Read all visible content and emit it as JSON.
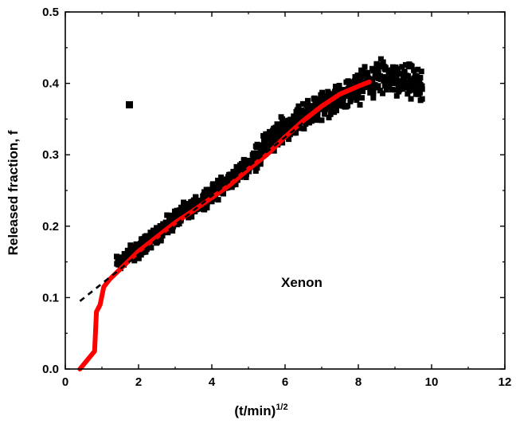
{
  "chart_data": {
    "type": "scatter",
    "xlabel": "(t/min)",
    "xlabel_superscript": "1/2",
    "ylabel": "Released fraction, f",
    "annotation": "Xenon",
    "xlim": [
      0,
      12
    ],
    "ylim": [
      0.0,
      0.5
    ],
    "x_ticks": [
      "0",
      "2",
      "4",
      "6",
      "8",
      "10",
      "12"
    ],
    "y_ticks": [
      "0.0",
      "0.1",
      "0.2",
      "0.3",
      "0.4",
      "0.5"
    ],
    "grid": false,
    "legend": "none",
    "colors": {
      "points": "#000000",
      "fit": "#ff0000",
      "dashed": "#000000"
    },
    "series": [
      {
        "kind": "points",
        "marker": "square",
        "color": "#000000",
        "outlier": [
          1.75,
          0.37
        ],
        "trend": [
          [
            1.4,
            0.148
          ],
          [
            2.0,
            0.168
          ],
          [
            3.0,
            0.21
          ],
          [
            4.0,
            0.245
          ],
          [
            5.0,
            0.285
          ],
          [
            5.5,
            0.315
          ],
          [
            6.0,
            0.338
          ],
          [
            6.5,
            0.355
          ],
          [
            7.0,
            0.368
          ],
          [
            7.5,
            0.38
          ],
          [
            8.0,
            0.395
          ],
          [
            8.5,
            0.408
          ],
          [
            9.0,
            0.405
          ],
          [
            9.5,
            0.4
          ],
          [
            9.75,
            0.395
          ]
        ]
      },
      {
        "kind": "line",
        "style": "solid",
        "color": "#ff0000",
        "points": [
          [
            0.4,
            0.0
          ],
          [
            0.8,
            0.025
          ],
          [
            0.85,
            0.08
          ],
          [
            0.95,
            0.09
          ],
          [
            1.05,
            0.115
          ],
          [
            1.2,
            0.125
          ],
          [
            1.5,
            0.14
          ],
          [
            2.0,
            0.165
          ],
          [
            2.5,
            0.185
          ],
          [
            3.0,
            0.205
          ],
          [
            3.5,
            0.222
          ],
          [
            4.0,
            0.24
          ],
          [
            4.5,
            0.258
          ],
          [
            5.0,
            0.28
          ],
          [
            5.5,
            0.3
          ],
          [
            6.0,
            0.325
          ],
          [
            6.5,
            0.348
          ],
          [
            7.0,
            0.368
          ],
          [
            7.5,
            0.385
          ],
          [
            8.0,
            0.396
          ],
          [
            8.3,
            0.402
          ]
        ]
      },
      {
        "kind": "line",
        "style": "dashed",
        "color": "#000000",
        "points": [
          [
            0.4,
            0.095
          ],
          [
            6.5,
            0.345
          ]
        ]
      }
    ]
  }
}
